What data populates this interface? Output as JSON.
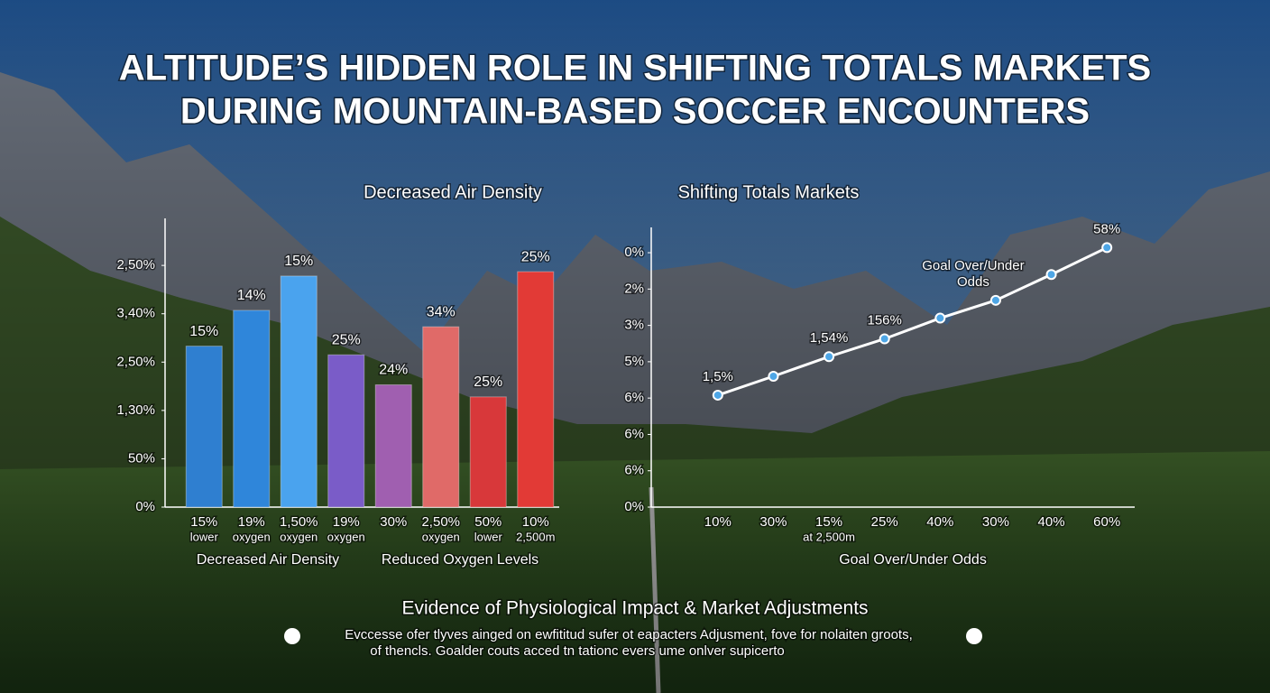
{
  "title_lines": [
    "ALTITUDE’S HIDDEN ROLE IN SHIFTING TOTALS MARKETS",
    "DURING MOUNTAIN-BASED SOCCER ENCOUNTERS"
  ],
  "chart_data": [
    {
      "type": "bar",
      "title": "Decreased Air Density",
      "categories": [
        [
          "15%",
          "lower"
        ],
        [
          "19%",
          "oxygen"
        ],
        [
          "1,50%",
          "oxygen"
        ],
        [
          "19%",
          "oxygen"
        ],
        [
          "30%"
        ],
        [
          "2,50%",
          "oxygen"
        ],
        [
          "50%",
          "lower"
        ],
        [
          "10%",
          "2,500m"
        ]
      ],
      "values": [
        3.33,
        4.07,
        4.78,
        3.15,
        2.53,
        3.73,
        2.28,
        4.87
      ],
      "colors": [
        "#2f7fd0",
        "#2f86da",
        "#4aa3ee",
        "#7a5cc8",
        "#a05fb0",
        "#e06a68",
        "#d8383a",
        "#e23a36"
      ],
      "annotations": [
        "15%",
        "14%",
        "15%",
        "25%",
        "24%",
        "34%",
        "25%",
        "25%"
      ],
      "group_labels": [
        "Decreased Air Density",
        "Reduced Oxygen Levels"
      ],
      "ylim": [
        0,
        5.6
      ],
      "yticks": [
        {
          "value": 0,
          "label": "0%"
        },
        {
          "value": 1,
          "label": "50%"
        },
        {
          "value": 2,
          "label": "1,30%"
        },
        {
          "value": 3,
          "label": "2,50%"
        },
        {
          "value": 4,
          "label": "3,40%"
        },
        {
          "value": 5,
          "label": "2,50%"
        }
      ]
    },
    {
      "type": "line",
      "title": "Shifting Totals Markets",
      "categories": [
        [
          "10%"
        ],
        [
          "30%"
        ],
        [
          "15%",
          "at 2,500m"
        ],
        [
          "25%"
        ],
        [
          "40%"
        ],
        [
          "30%"
        ],
        [
          "40%"
        ],
        [
          "60%"
        ]
      ],
      "series": [
        {
          "name": [
            "Goal Over/Under",
            "Odds"
          ],
          "color": "#ffffff",
          "marker_color": "#4ea6e6",
          "values": [
            3.08,
            3.6,
            4.14,
            4.63,
            5.2,
            5.69,
            6.4,
            7.14
          ],
          "point_labels": [
            "1,5%",
            null,
            "1,54%",
            "156%",
            null,
            null,
            null,
            "58%"
          ]
        }
      ],
      "xlabel": "Goal Over/Under Odds",
      "ylim": [
        0,
        7.2
      ],
      "yticks": [
        {
          "value": 0,
          "label": "0%"
        },
        {
          "value": 1,
          "label": "6%"
        },
        {
          "value": 2,
          "label": "6%"
        },
        {
          "value": 3,
          "label": "6%"
        },
        {
          "value": 4,
          "label": "5%"
        },
        {
          "value": 5,
          "label": "3%"
        },
        {
          "value": 6,
          "label": "2%"
        },
        {
          "value": 7,
          "label": "0%"
        }
      ]
    }
  ],
  "footer": {
    "heading": "Evidence of Physiological Impact & Market Adjustments",
    "lines": [
      "Evccesse ofer tlyves ainged on ewfititud sufer ot eapacters Adjusment, fove for nolaiten groots,",
      "of thencls. Goalder couts acced tn tationc evers ume onlver supicerto"
    ]
  }
}
